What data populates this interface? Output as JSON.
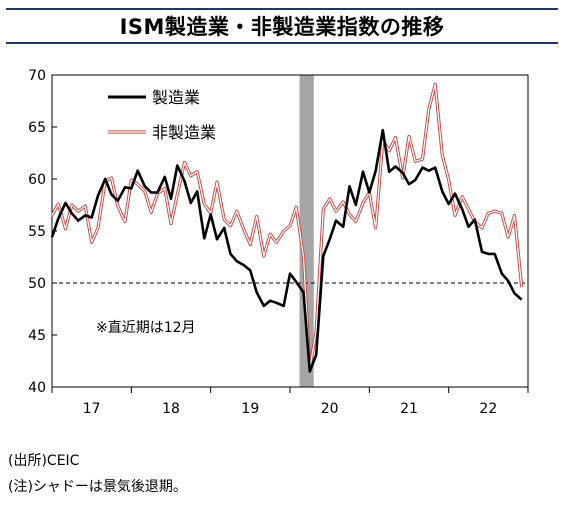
{
  "title": "ISM製造業・非製造業指数の推移",
  "source_note": "(出所)CEIC",
  "caption_note": "(注)シャドーは景気後退期。",
  "chart_data": {
    "type": "line",
    "x_tick_labels": [
      "17",
      "18",
      "19",
      "20",
      "21",
      "22"
    ],
    "y_tick_labels": [
      "70",
      "65",
      "60",
      "55",
      "50",
      "45",
      "40"
    ],
    "ylim": [
      40,
      70
    ],
    "xlim": [
      2017.0,
      2023.0
    ],
    "reference_line": {
      "y": 50,
      "style": "dashed"
    },
    "recession_shading": {
      "start": 2020.12,
      "end": 2020.3,
      "color": "#a6a6a6"
    },
    "annotation": "※直近期は12月",
    "legend_position": "top-left",
    "series": [
      {
        "name": "製造業",
        "color": "#000000",
        "values": [
          [
            2017.0,
            54.4
          ],
          [
            2017.08,
            56.2
          ],
          [
            2017.17,
            57.7
          ],
          [
            2017.25,
            56.7
          ],
          [
            2017.33,
            56.0
          ],
          [
            2017.42,
            56.5
          ],
          [
            2017.5,
            56.3
          ],
          [
            2017.58,
            58.4
          ],
          [
            2017.67,
            60.0
          ],
          [
            2017.75,
            58.5
          ],
          [
            2017.83,
            57.9
          ],
          [
            2017.92,
            59.2
          ],
          [
            2018.0,
            59.1
          ],
          [
            2018.08,
            60.8
          ],
          [
            2018.17,
            59.3
          ],
          [
            2018.25,
            58.7
          ],
          [
            2018.33,
            58.7
          ],
          [
            2018.42,
            60.2
          ],
          [
            2018.5,
            58.1
          ],
          [
            2018.58,
            61.3
          ],
          [
            2018.67,
            59.8
          ],
          [
            2018.75,
            57.7
          ],
          [
            2018.83,
            58.8
          ],
          [
            2018.92,
            54.3
          ],
          [
            2019.0,
            56.6
          ],
          [
            2019.08,
            54.2
          ],
          [
            2019.17,
            55.3
          ],
          [
            2019.25,
            52.8
          ],
          [
            2019.33,
            52.1
          ],
          [
            2019.42,
            51.7
          ],
          [
            2019.5,
            51.2
          ],
          [
            2019.58,
            49.1
          ],
          [
            2019.67,
            47.8
          ],
          [
            2019.75,
            48.3
          ],
          [
            2019.83,
            48.1
          ],
          [
            2019.92,
            47.8
          ],
          [
            2020.0,
            50.9
          ],
          [
            2020.08,
            50.1
          ],
          [
            2020.17,
            49.1
          ],
          [
            2020.25,
            41.5
          ],
          [
            2020.33,
            43.1
          ],
          [
            2020.42,
            52.6
          ],
          [
            2020.5,
            54.2
          ],
          [
            2020.58,
            56.0
          ],
          [
            2020.67,
            55.4
          ],
          [
            2020.75,
            59.3
          ],
          [
            2020.83,
            57.5
          ],
          [
            2020.92,
            60.7
          ],
          [
            2021.0,
            58.7
          ],
          [
            2021.08,
            60.8
          ],
          [
            2021.17,
            64.7
          ],
          [
            2021.25,
            60.7
          ],
          [
            2021.33,
            61.2
          ],
          [
            2021.42,
            60.6
          ],
          [
            2021.5,
            59.5
          ],
          [
            2021.58,
            59.9
          ],
          [
            2021.67,
            61.1
          ],
          [
            2021.75,
            60.8
          ],
          [
            2021.83,
            61.1
          ],
          [
            2021.92,
            58.8
          ],
          [
            2022.0,
            57.6
          ],
          [
            2022.08,
            58.6
          ],
          [
            2022.17,
            57.1
          ],
          [
            2022.25,
            55.4
          ],
          [
            2022.33,
            56.1
          ],
          [
            2022.42,
            53.0
          ],
          [
            2022.5,
            52.8
          ],
          [
            2022.58,
            52.8
          ],
          [
            2022.67,
            50.9
          ],
          [
            2022.75,
            50.2
          ],
          [
            2022.83,
            49.0
          ],
          [
            2022.92,
            48.4
          ]
        ]
      },
      {
        "name": "非製造業",
        "color": "#c0504d",
        "values": [
          [
            2017.0,
            56.5
          ],
          [
            2017.08,
            57.6
          ],
          [
            2017.17,
            55.2
          ],
          [
            2017.25,
            57.5
          ],
          [
            2017.33,
            56.9
          ],
          [
            2017.42,
            57.4
          ],
          [
            2017.5,
            53.9
          ],
          [
            2017.58,
            55.3
          ],
          [
            2017.67,
            59.8
          ],
          [
            2017.75,
            60.1
          ],
          [
            2017.83,
            57.4
          ],
          [
            2017.92,
            55.9
          ],
          [
            2018.0,
            59.9
          ],
          [
            2018.08,
            59.5
          ],
          [
            2018.17,
            58.8
          ],
          [
            2018.25,
            56.8
          ],
          [
            2018.33,
            58.6
          ],
          [
            2018.42,
            59.1
          ],
          [
            2018.5,
            55.7
          ],
          [
            2018.58,
            58.5
          ],
          [
            2018.67,
            61.6
          ],
          [
            2018.75,
            60.3
          ],
          [
            2018.83,
            60.7
          ],
          [
            2018.92,
            57.6
          ],
          [
            2019.0,
            56.7
          ],
          [
            2019.08,
            59.7
          ],
          [
            2019.17,
            56.1
          ],
          [
            2019.25,
            55.5
          ],
          [
            2019.33,
            56.9
          ],
          [
            2019.42,
            55.1
          ],
          [
            2019.5,
            53.7
          ],
          [
            2019.58,
            56.4
          ],
          [
            2019.67,
            52.6
          ],
          [
            2019.75,
            54.7
          ],
          [
            2019.83,
            53.9
          ],
          [
            2019.92,
            55.0
          ],
          [
            2020.0,
            55.5
          ],
          [
            2020.08,
            57.3
          ],
          [
            2020.17,
            52.5
          ],
          [
            2020.25,
            41.8
          ],
          [
            2020.33,
            45.4
          ],
          [
            2020.42,
            57.1
          ],
          [
            2020.5,
            58.1
          ],
          [
            2020.58,
            56.9
          ],
          [
            2020.67,
            57.8
          ],
          [
            2020.75,
            56.6
          ],
          [
            2020.83,
            55.9
          ],
          [
            2020.92,
            57.7
          ],
          [
            2021.0,
            58.7
          ],
          [
            2021.08,
            55.3
          ],
          [
            2021.17,
            63.7
          ],
          [
            2021.25,
            62.7
          ],
          [
            2021.33,
            64.0
          ],
          [
            2021.42,
            60.1
          ],
          [
            2021.5,
            64.1
          ],
          [
            2021.58,
            61.7
          ],
          [
            2021.67,
            61.9
          ],
          [
            2021.75,
            66.7
          ],
          [
            2021.83,
            69.1
          ],
          [
            2021.92,
            62.3
          ],
          [
            2022.0,
            59.9
          ],
          [
            2022.08,
            56.5
          ],
          [
            2022.17,
            58.3
          ],
          [
            2022.25,
            57.1
          ],
          [
            2022.33,
            55.9
          ],
          [
            2022.42,
            55.3
          ],
          [
            2022.5,
            56.7
          ],
          [
            2022.58,
            56.9
          ],
          [
            2022.67,
            56.7
          ],
          [
            2022.75,
            54.4
          ],
          [
            2022.83,
            56.5
          ],
          [
            2022.92,
            49.6
          ]
        ]
      }
    ]
  }
}
